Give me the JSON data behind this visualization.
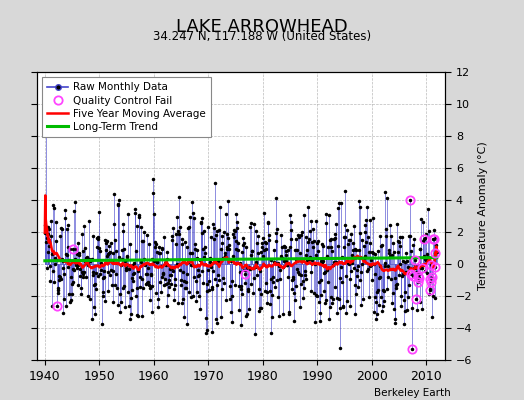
{
  "title": "LAKE ARROWHEAD",
  "subtitle": "34.247 N, 117.188 W (United States)",
  "ylabel": "Temperature Anomaly (°C)",
  "xlabel_note": "Berkeley Earth",
  "ylim": [
    -6,
    12
  ],
  "yticks": [
    -6,
    -4,
    -2,
    0,
    2,
    4,
    6,
    8,
    10,
    12
  ],
  "xlim": [
    1938.5,
    2013.5
  ],
  "xticks": [
    1940,
    1950,
    1960,
    1970,
    1980,
    1990,
    2000,
    2010
  ],
  "start_year": 1940,
  "end_year": 2012,
  "bg_color": "#d8d8d8",
  "plot_bg": "#ffffff",
  "line_color": "#4444cc",
  "dot_color": "#000000",
  "avg_color": "#ff0000",
  "trend_color": "#00bb00",
  "qc_color": "#ff44ff",
  "seed": 137
}
